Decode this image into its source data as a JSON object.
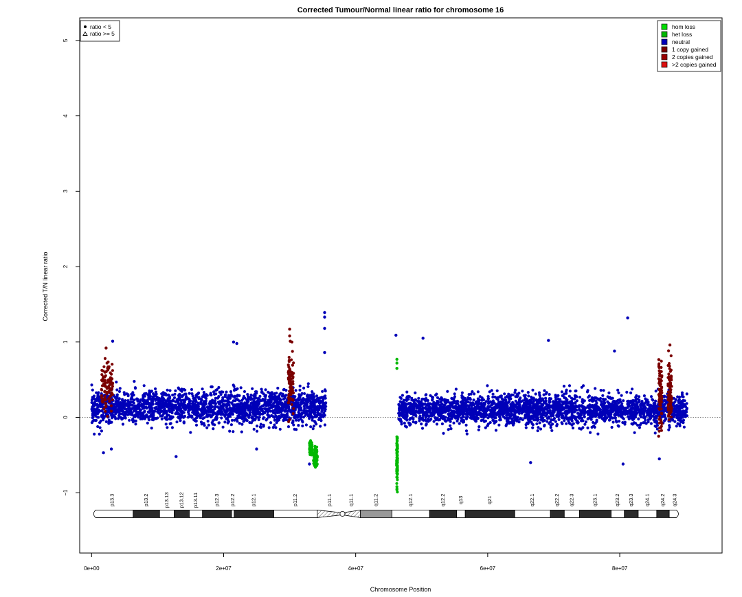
{
  "chart_data": {
    "type": "scatter",
    "title": "Corrected Tumour/Normal linear ratio for chromosome  16",
    "xlabel": "Chromosome Position",
    "ylabel": "Corrected T/N linear ratio",
    "xlim": [
      -1800000,
      95500000
    ],
    "ylim": [
      -1.8,
      5.3
    ],
    "x_ticks": [
      0,
      20000000,
      40000000,
      60000000,
      80000000
    ],
    "x_tick_labels": [
      "0e+00",
      "2e+07",
      "4e+07",
      "6e+07",
      "8e+07"
    ],
    "y_ticks": [
      -1,
      0,
      1,
      2,
      3,
      4,
      5
    ],
    "y_tick_labels": [
      "−1",
      "0",
      "1",
      "2",
      "3",
      "4",
      "5"
    ],
    "reference_line_y": 0,
    "shape_legend": {
      "position": "top-left",
      "items": [
        {
          "symbol": "dot",
          "label": "ratio < 5"
        },
        {
          "symbol": "triangle",
          "label": "ratio >= 5"
        }
      ]
    },
    "color_legend": {
      "position": "top-right",
      "items": [
        {
          "label": "hom loss",
          "color": "#00dd00"
        },
        {
          "label": "het loss",
          "color": "#00b800"
        },
        {
          "label": "neutral",
          "color": "#0000b8"
        },
        {
          "label": "1 copy gained",
          "color": "#7a0000"
        },
        {
          "label": "2 copies gained",
          "color": "#9a0000"
        },
        {
          "label": ">2 copies gained",
          "color": "#dd1111"
        }
      ]
    },
    "series": [
      {
        "name": "neutral",
        "color": "#0000b8",
        "segments": [
          {
            "x_start": 0,
            "x_end": 35500000,
            "median": 0.13,
            "spread": 0.22
          },
          {
            "x_start": 46500000,
            "x_end": 90200000,
            "median": 0.1,
            "spread": 0.2
          }
        ],
        "outliers": [
          {
            "x": 35300000,
            "y": 1.39
          },
          {
            "x": 35300000,
            "y": 1.33
          },
          {
            "x": 35300000,
            "y": 1.18
          },
          {
            "x": 35300000,
            "y": 0.86
          },
          {
            "x": 81200000,
            "y": 1.32
          },
          {
            "x": 46100000,
            "y": 1.09
          },
          {
            "x": 50200000,
            "y": 1.05
          },
          {
            "x": 3200000,
            "y": 1.01
          },
          {
            "x": 69200000,
            "y": 1.02
          },
          {
            "x": 21500000,
            "y": 1.0
          },
          {
            "x": 22000000,
            "y": 0.98
          },
          {
            "x": 79200000,
            "y": 0.88
          },
          {
            "x": 1800000,
            "y": -0.47
          },
          {
            "x": 3000000,
            "y": -0.42
          },
          {
            "x": 33000000,
            "y": -0.62
          },
          {
            "x": 66500000,
            "y": -0.6
          },
          {
            "x": 80500000,
            "y": -0.62
          },
          {
            "x": 86000000,
            "y": -0.55
          },
          {
            "x": 12800000,
            "y": -0.52
          },
          {
            "x": 25000000,
            "y": -0.42
          }
        ]
      },
      {
        "name": "1 copy gained",
        "color": "#7a0000",
        "segments": [
          {
            "x_start": 1500000,
            "x_end": 3200000,
            "median": 0.42,
            "spread": 0.32
          },
          {
            "x_start": 29800000,
            "x_end": 30600000,
            "median": 0.48,
            "spread": 0.42
          },
          {
            "x_start": 85900000,
            "x_end": 86400000,
            "median": 0.3,
            "spread": 0.42
          },
          {
            "x_start": 87300000,
            "x_end": 87900000,
            "median": 0.35,
            "spread": 0.38
          }
        ],
        "outliers": [
          {
            "x": 30000000,
            "y": 1.17
          },
          {
            "x": 30000000,
            "y": 1.08
          },
          {
            "x": 30100000,
            "y": 1.01
          },
          {
            "x": 2200000,
            "y": 0.92
          },
          {
            "x": 87600000,
            "y": 0.96
          },
          {
            "x": 85900000,
            "y": -0.25
          }
        ]
      },
      {
        "name": "het loss",
        "color": "#00b800",
        "segments": [
          {
            "x_start": 33000000,
            "x_end": 33400000,
            "median": -0.42,
            "spread": 0.1
          },
          {
            "x_start": 33600000,
            "x_end": 34200000,
            "median": -0.52,
            "spread": 0.12
          },
          {
            "x_start": 46200000,
            "x_end": 46350000,
            "median": -0.55,
            "spread": 0.3
          }
        ],
        "outliers": [
          {
            "x": 46250000,
            "y": 0.77
          },
          {
            "x": 46250000,
            "y": 0.72
          },
          {
            "x": 46250000,
            "y": 0.65
          },
          {
            "x": 46250000,
            "y": -0.96
          },
          {
            "x": 46250000,
            "y": -0.92
          },
          {
            "x": 33900000,
            "y": -0.66
          },
          {
            "x": 34100000,
            "y": -0.64
          }
        ]
      }
    ],
    "ideogram": {
      "y": -1.28,
      "bands": [
        {
          "name": "p13.3",
          "start": 0,
          "end": 6300000,
          "stain": "white"
        },
        {
          "name": "p13.2",
          "start": 6300000,
          "end": 10300000,
          "stain": "black"
        },
        {
          "name": "p13.13",
          "start": 10300000,
          "end": 12500000,
          "stain": "white"
        },
        {
          "name": "p13.12",
          "start": 12500000,
          "end": 14800000,
          "stain": "black"
        },
        {
          "name": "p13.11",
          "start": 14800000,
          "end": 16800000,
          "stain": "white"
        },
        {
          "name": "p12.3",
          "start": 16800000,
          "end": 21200000,
          "stain": "black"
        },
        {
          "name": "p12.2",
          "start": 21200000,
          "end": 21600000,
          "stain": "white"
        },
        {
          "name": "p12.1",
          "start": 21600000,
          "end": 27600000,
          "stain": "black"
        },
        {
          "name": "p11.2",
          "start": 27600000,
          "end": 34200000,
          "stain": "white"
        },
        {
          "name": "p11.1",
          "start": 34200000,
          "end": 38000000,
          "stain": "hatch"
        },
        {
          "name": "q11.1",
          "start": 38000000,
          "end": 40700000,
          "stain": "hatch"
        },
        {
          "name": "q11.2",
          "start": 40700000,
          "end": 45500000,
          "stain": "grey"
        },
        {
          "name": "q12.1",
          "start": 45500000,
          "end": 51200000,
          "stain": "white"
        },
        {
          "name": "q12.2",
          "start": 51200000,
          "end": 55300000,
          "stain": "black"
        },
        {
          "name": "q13",
          "start": 55300000,
          "end": 56600000,
          "stain": "white"
        },
        {
          "name": "q21",
          "start": 56600000,
          "end": 64100000,
          "stain": "black"
        },
        {
          "name": "q22.1",
          "start": 64100000,
          "end": 69500000,
          "stain": "white"
        },
        {
          "name": "q22.2",
          "start": 69500000,
          "end": 71600000,
          "stain": "black"
        },
        {
          "name": "q22.3",
          "start": 71600000,
          "end": 73900000,
          "stain": "white"
        },
        {
          "name": "q23.1",
          "start": 73900000,
          "end": 78700000,
          "stain": "black"
        },
        {
          "name": "q23.2",
          "start": 78700000,
          "end": 80700000,
          "stain": "white"
        },
        {
          "name": "q23.3",
          "start": 80700000,
          "end": 82800000,
          "stain": "black"
        },
        {
          "name": "q24.1",
          "start": 82800000,
          "end": 85600000,
          "stain": "white"
        },
        {
          "name": "q24.2",
          "start": 85600000,
          "end": 87500000,
          "stain": "black"
        },
        {
          "name": "q24.3",
          "start": 87500000,
          "end": 89200000,
          "stain": "white"
        }
      ]
    }
  }
}
